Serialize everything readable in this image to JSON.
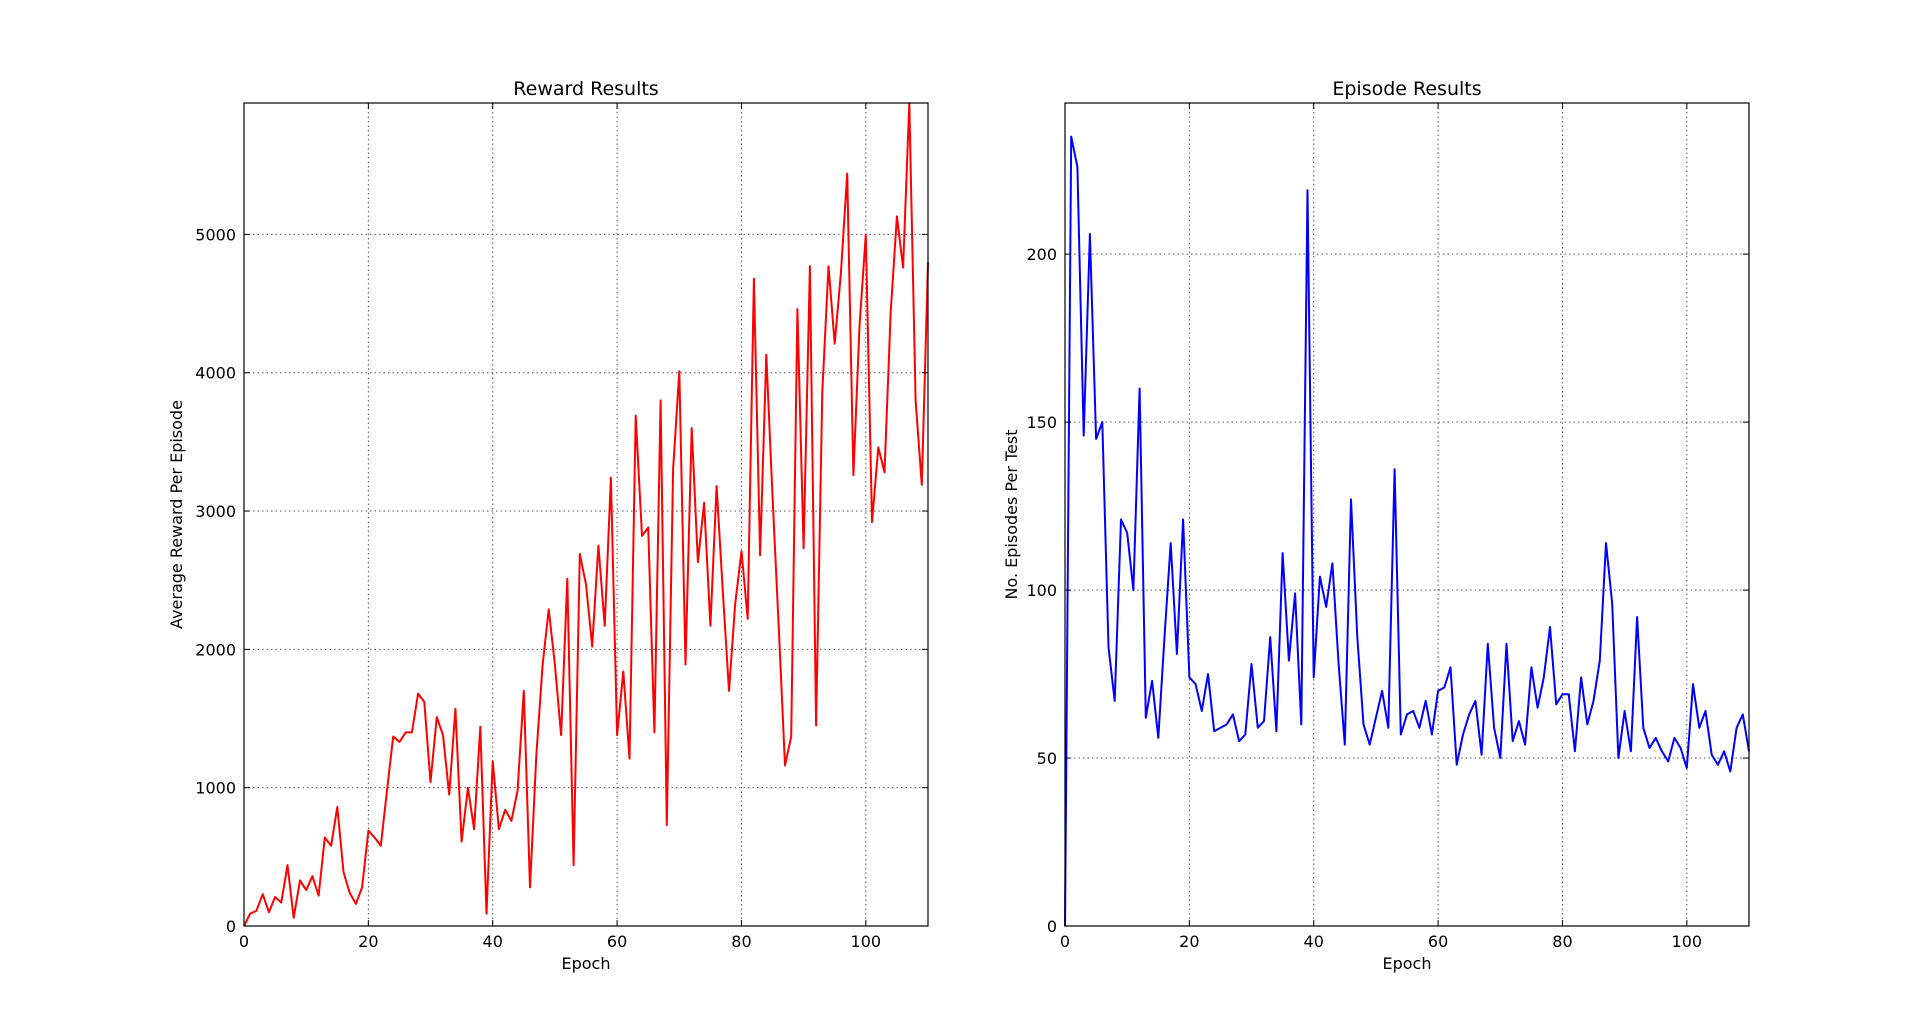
{
  "chart_data": [
    {
      "type": "line",
      "title": "Reward Results",
      "xlabel": "Epoch",
      "ylabel": "Average Reward Per Episode",
      "xlim": [
        0,
        110
      ],
      "ylim": [
        0,
        5950
      ],
      "xticks": [
        0,
        20,
        40,
        60,
        80,
        100
      ],
      "yticks": [
        0,
        1000,
        2000,
        3000,
        4000,
        5000
      ],
      "grid": true,
      "series": [
        {
          "color": "#ff0000",
          "x": [
            0,
            1,
            2,
            3,
            4,
            5,
            6,
            7,
            8,
            9,
            10,
            11,
            12,
            13,
            14,
            15,
            16,
            17,
            18,
            19,
            20,
            21,
            22,
            23,
            24,
            25,
            26,
            27,
            28,
            29,
            30,
            31,
            32,
            33,
            34,
            35,
            36,
            37,
            38,
            39,
            40,
            41,
            42,
            43,
            44,
            45,
            46,
            47,
            48,
            49,
            50,
            51,
            52,
            53,
            54,
            55,
            56,
            57,
            58,
            59,
            60,
            61,
            62,
            63,
            64,
            65,
            66,
            67,
            68,
            69,
            70,
            71,
            72,
            73,
            74,
            75,
            76,
            77,
            78,
            79,
            80,
            81,
            82,
            83,
            84,
            85,
            86,
            87,
            88,
            89,
            90,
            91,
            92,
            93,
            94,
            95,
            96,
            97,
            98,
            99,
            100,
            101,
            102,
            103,
            104,
            105,
            106,
            107,
            108,
            109,
            110
          ],
          "values": [
            0,
            90,
            110,
            230,
            100,
            210,
            170,
            440,
            60,
            330,
            260,
            360,
            220,
            640,
            580,
            860,
            390,
            240,
            160,
            280,
            690,
            640,
            580,
            980,
            1370,
            1330,
            1400,
            1400,
            1680,
            1620,
            1040,
            1510,
            1380,
            950,
            1570,
            610,
            1000,
            700,
            1440,
            90,
            1190,
            700,
            840,
            760,
            980,
            1700,
            280,
            1230,
            1880,
            2290,
            1890,
            1380,
            2510,
            440,
            2690,
            2470,
            2020,
            2750,
            2170,
            3240,
            1380,
            1840,
            1210,
            3690,
            2820,
            2880,
            1400,
            3800,
            730,
            3300,
            4010,
            1890,
            3600,
            2630,
            3060,
            2170,
            3180,
            2420,
            1700,
            2330,
            2710,
            2220,
            4680,
            2680,
            4130,
            3110,
            2150,
            1160,
            1370,
            4460,
            2730,
            4770,
            1450,
            3860,
            4770,
            4210,
            4720,
            5440,
            3260,
            4350,
            5000,
            2920,
            3460,
            3280,
            4440,
            5130,
            4760,
            5950,
            3800,
            3190,
            4800
          ]
        }
      ]
    },
    {
      "type": "line",
      "title": "Episode Results",
      "xlabel": "Epoch",
      "ylabel": "No. Episodes Per Test",
      "xlim": [
        0,
        110
      ],
      "ylim": [
        0,
        245
      ],
      "xticks": [
        0,
        20,
        40,
        60,
        80,
        100
      ],
      "yticks": [
        0,
        50,
        100,
        150,
        200
      ],
      "grid": true,
      "series": [
        {
          "color": "#0000ff",
          "x": [
            0,
            1,
            2,
            3,
            4,
            5,
            6,
            7,
            8,
            9,
            10,
            11,
            12,
            13,
            14,
            15,
            16,
            17,
            18,
            19,
            20,
            21,
            22,
            23,
            24,
            25,
            26,
            27,
            28,
            29,
            30,
            31,
            32,
            33,
            34,
            35,
            36,
            37,
            38,
            39,
            40,
            41,
            42,
            43,
            44,
            45,
            46,
            47,
            48,
            49,
            50,
            51,
            52,
            53,
            54,
            55,
            56,
            57,
            58,
            59,
            60,
            61,
            62,
            63,
            64,
            65,
            66,
            67,
            68,
            69,
            70,
            71,
            72,
            73,
            74,
            75,
            76,
            77,
            78,
            79,
            80,
            81,
            82,
            83,
            84,
            85,
            86,
            87,
            88,
            89,
            90,
            91,
            92,
            93,
            94,
            95,
            96,
            97,
            98,
            99,
            100,
            101,
            102,
            103,
            104,
            105,
            106,
            107,
            108,
            109,
            110
          ],
          "values": [
            0,
            235,
            226,
            146,
            206,
            145,
            150,
            83,
            67,
            121,
            117,
            100,
            160,
            62,
            73,
            56,
            86,
            114,
            81,
            121,
            74,
            72,
            64,
            75,
            58,
            59,
            60,
            63,
            55,
            57,
            78,
            59,
            61,
            86,
            58,
            111,
            79,
            99,
            60,
            219,
            74,
            104,
            95,
            108,
            78,
            54,
            127,
            86,
            60,
            54,
            62,
            70,
            59,
            136,
            57,
            63,
            64,
            59,
            67,
            57,
            70,
            71,
            77,
            48,
            57,
            63,
            67,
            51,
            84,
            59,
            50,
            84,
            55,
            61,
            54,
            77,
            65,
            74,
            89,
            66,
            69,
            69,
            52,
            74,
            60,
            67,
            79,
            114,
            96,
            50,
            64,
            52,
            92,
            59,
            53,
            56,
            52,
            49,
            56,
            53,
            47,
            72,
            59,
            64,
            51,
            48,
            52,
            46,
            59,
            63,
            52
          ]
        }
      ]
    }
  ]
}
